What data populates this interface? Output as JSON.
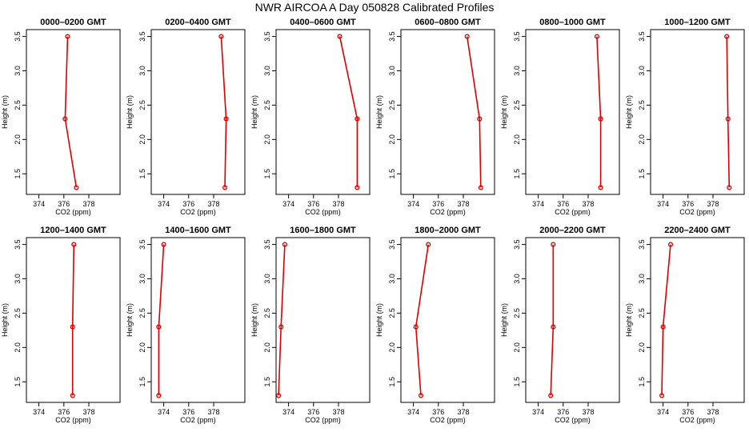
{
  "title": "NWR AIRCOA A  Day 050828  Calibrated Profiles",
  "colors": {
    "series": "#dd0000",
    "axis": "#000000"
  },
  "chart_data": [
    {
      "type": "line",
      "title": "0000–0200 GMT",
      "xlabel": "CO2 (ppm)",
      "ylabel": "Height (m)",
      "xlim": [
        373,
        380.5
      ],
      "ylim": [
        1.2,
        3.6
      ],
      "x_ticks": [
        374,
        376,
        378
      ],
      "y_ticks": [
        1.5,
        2.0,
        2.5,
        3.0,
        3.5
      ],
      "grid": false,
      "series": [
        {
          "x": [
            377.0,
            376.1,
            376.3
          ],
          "y": [
            1.3,
            2.3,
            3.5
          ]
        }
      ]
    },
    {
      "type": "line",
      "title": "0200–0400 GMT",
      "xlabel": "CO2 (ppm)",
      "ylabel": "Height (m)",
      "xlim": [
        373,
        380.5
      ],
      "ylim": [
        1.2,
        3.6
      ],
      "x_ticks": [
        374,
        376,
        378
      ],
      "y_ticks": [
        1.5,
        2.0,
        2.5,
        3.0,
        3.5
      ],
      "grid": false,
      "series": [
        {
          "x": [
            378.9,
            379.0,
            378.6
          ],
          "y": [
            1.3,
            2.3,
            3.5
          ]
        }
      ]
    },
    {
      "type": "line",
      "title": "0400–0600 GMT",
      "xlabel": "CO2 (ppm)",
      "ylabel": "Height (m)",
      "xlim": [
        373,
        380.5
      ],
      "ylim": [
        1.2,
        3.6
      ],
      "x_ticks": [
        374,
        376,
        378
      ],
      "y_ticks": [
        1.5,
        2.0,
        2.5,
        3.0,
        3.5
      ],
      "grid": false,
      "series": [
        {
          "x": [
            379.5,
            379.5,
            378.1
          ],
          "y": [
            1.3,
            2.3,
            3.5
          ]
        }
      ]
    },
    {
      "type": "line",
      "title": "0600–0800 GMT",
      "xlabel": "CO2 (ppm)",
      "ylabel": "Height (m)",
      "xlim": [
        373,
        380.5
      ],
      "ylim": [
        1.2,
        3.6
      ],
      "x_ticks": [
        374,
        376,
        378
      ],
      "y_ticks": [
        1.5,
        2.0,
        2.5,
        3.0,
        3.5
      ],
      "grid": false,
      "series": [
        {
          "x": [
            379.4,
            379.3,
            378.3
          ],
          "y": [
            1.3,
            2.3,
            3.5
          ]
        }
      ]
    },
    {
      "type": "line",
      "title": "0800–1000 GMT",
      "xlabel": "CO2 (ppm)",
      "ylabel": "Height (m)",
      "xlim": [
        373,
        380.5
      ],
      "ylim": [
        1.2,
        3.6
      ],
      "x_ticks": [
        374,
        376,
        378
      ],
      "y_ticks": [
        1.5,
        2.0,
        2.5,
        3.0,
        3.5
      ],
      "grid": false,
      "series": [
        {
          "x": [
            379.0,
            379.0,
            378.7
          ],
          "y": [
            1.3,
            2.3,
            3.5
          ]
        }
      ]
    },
    {
      "type": "line",
      "title": "1000–1200 GMT",
      "xlabel": "CO2 (ppm)",
      "ylabel": "Height (m)",
      "xlim": [
        373,
        380.5
      ],
      "ylim": [
        1.2,
        3.6
      ],
      "x_ticks": [
        374,
        376,
        378
      ],
      "y_ticks": [
        1.5,
        2.0,
        2.5,
        3.0,
        3.5
      ],
      "grid": false,
      "series": [
        {
          "x": [
            379.3,
            379.2,
            379.1
          ],
          "y": [
            1.3,
            2.3,
            3.5
          ]
        }
      ]
    },
    {
      "type": "line",
      "title": "1200–1400 GMT",
      "xlabel": "CO2 (ppm)",
      "ylabel": "Height (m)",
      "xlim": [
        373,
        380.5
      ],
      "ylim": [
        1.2,
        3.6
      ],
      "x_ticks": [
        374,
        376,
        378
      ],
      "y_ticks": [
        1.5,
        2.0,
        2.5,
        3.0,
        3.5
      ],
      "grid": false,
      "series": [
        {
          "x": [
            376.7,
            376.7,
            376.8
          ],
          "y": [
            1.3,
            2.3,
            3.5
          ]
        }
      ]
    },
    {
      "type": "line",
      "title": "1400–1600 GMT",
      "xlabel": "CO2 (ppm)",
      "ylabel": "Height (m)",
      "xlim": [
        373,
        380.5
      ],
      "ylim": [
        1.2,
        3.6
      ],
      "x_ticks": [
        374,
        376,
        378
      ],
      "y_ticks": [
        1.5,
        2.0,
        2.5,
        3.0,
        3.5
      ],
      "grid": false,
      "series": [
        {
          "x": [
            373.6,
            373.6,
            374.0
          ],
          "y": [
            1.3,
            2.3,
            3.5
          ]
        }
      ]
    },
    {
      "type": "line",
      "title": "1600–1800 GMT",
      "xlabel": "CO2 (ppm)",
      "ylabel": "Height (m)",
      "xlim": [
        373,
        380.5
      ],
      "ylim": [
        1.2,
        3.6
      ],
      "x_ticks": [
        374,
        376,
        378
      ],
      "y_ticks": [
        1.5,
        2.0,
        2.5,
        3.0,
        3.5
      ],
      "grid": false,
      "series": [
        {
          "x": [
            373.2,
            373.4,
            373.7
          ],
          "y": [
            1.3,
            2.3,
            3.5
          ]
        }
      ]
    },
    {
      "type": "line",
      "title": "1800–2000 GMT",
      "xlabel": "CO2 (ppm)",
      "ylabel": "Height (m)",
      "xlim": [
        373,
        380.5
      ],
      "ylim": [
        1.2,
        3.6
      ],
      "x_ticks": [
        374,
        376,
        378
      ],
      "y_ticks": [
        1.5,
        2.0,
        2.5,
        3.0,
        3.5
      ],
      "grid": false,
      "series": [
        {
          "x": [
            374.6,
            374.2,
            375.2
          ],
          "y": [
            1.3,
            2.3,
            3.5
          ]
        }
      ]
    },
    {
      "type": "line",
      "title": "2000–2200 GMT",
      "xlabel": "CO2 (ppm)",
      "ylabel": "Height (m)",
      "xlim": [
        373,
        380.5
      ],
      "ylim": [
        1.2,
        3.6
      ],
      "x_ticks": [
        374,
        376,
        378
      ],
      "y_ticks": [
        1.5,
        2.0,
        2.5,
        3.0,
        3.5
      ],
      "grid": false,
      "series": [
        {
          "x": [
            375.0,
            375.2,
            375.2
          ],
          "y": [
            1.3,
            2.3,
            3.5
          ]
        }
      ]
    },
    {
      "type": "line",
      "title": "2200–2400 GMT",
      "xlabel": "CO2 (ppm)",
      "ylabel": "Height (m)",
      "xlim": [
        373,
        380.5
      ],
      "ylim": [
        1.2,
        3.6
      ],
      "x_ticks": [
        374,
        376,
        378
      ],
      "y_ticks": [
        1.5,
        2.0,
        2.5,
        3.0,
        3.5
      ],
      "grid": false,
      "series": [
        {
          "x": [
            373.9,
            374.0,
            374.6
          ],
          "y": [
            1.3,
            2.3,
            3.5
          ]
        }
      ]
    }
  ]
}
